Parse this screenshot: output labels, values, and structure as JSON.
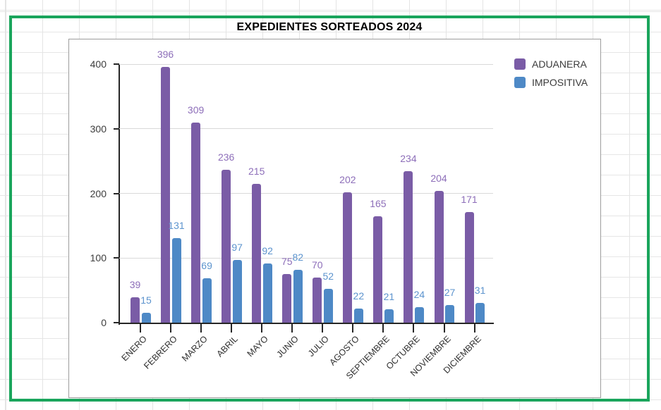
{
  "title": "EXPEDIENTES SORTEADOS 2024",
  "colors": {
    "selection_border_green": "#1aa55c",
    "chart_border_gray": "#9d9d9d",
    "axis_color": "#262626",
    "gridline_color": "#d9d9d9",
    "aduanera_purple": "#7a5ca6",
    "impositiva_blue": "#4e89c6",
    "aduanera_label_purple": "#8d6eb9",
    "impositiva_label_blue": "#5d94ce"
  },
  "legend": {
    "position": "top-right",
    "items": [
      {
        "label": "ADUANERA",
        "color": "#7a5ca6"
      },
      {
        "label": "IMPOSITIVA",
        "color": "#4e89c6"
      }
    ]
  },
  "chart_data": {
    "type": "bar",
    "title": "EXPEDIENTES SORTEADOS 2024",
    "categories": [
      "ENERO",
      "FEBRERO",
      "MARZO",
      "ABRIL",
      "MAYO",
      "JUNIO",
      "JULIO",
      "AGOSTO",
      "SEPTIEMBRE",
      "OCTUBRE",
      "NOVIEMBRE",
      "DICIEMBRE"
    ],
    "series": [
      {
        "name": "ADUANERA",
        "color": "#7a5ca6",
        "label_color": "#8d6eb9",
        "values": [
          39,
          396,
          309,
          236,
          215,
          75,
          70,
          202,
          165,
          234,
          204,
          171
        ]
      },
      {
        "name": "IMPOSITIVA",
        "color": "#4e89c6",
        "label_color": "#5d94ce",
        "values": [
          15,
          131,
          69,
          97,
          92,
          82,
          52,
          22,
          21,
          24,
          27,
          31
        ]
      }
    ],
    "xlabel": "",
    "ylabel": "",
    "y_ticks": [
      0,
      100,
      200,
      300,
      400
    ],
    "ylim": [
      0,
      400
    ],
    "grid": true,
    "data_labels": true,
    "legend_position": "top-right"
  }
}
